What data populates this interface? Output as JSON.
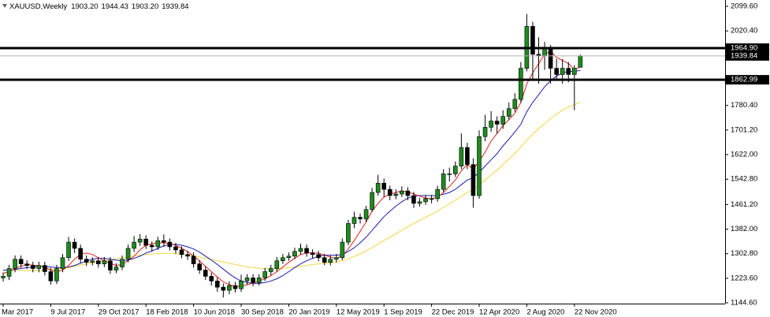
{
  "chart_data": {
    "type": "candlestick",
    "title": "XAUUSD,Weekly",
    "last_bar_labels": [
      "1903.20",
      "1944.43",
      "1903.20",
      "1939.84"
    ],
    "categories": [
      "Mar 2017",
      null,
      null,
      null,
      null,
      null,
      null,
      null,
      "9 Jul 2017",
      null,
      null,
      null,
      null,
      null,
      null,
      null,
      "29 Oct 2017",
      null,
      null,
      null,
      null,
      null,
      null,
      null,
      "18 Feb 2018",
      null,
      null,
      null,
      null,
      null,
      null,
      null,
      "10 Jun 2018",
      null,
      null,
      null,
      null,
      null,
      null,
      null,
      "30 Sep 2018",
      null,
      null,
      null,
      null,
      null,
      null,
      null,
      "20 Jan 2019",
      null,
      null,
      null,
      null,
      null,
      null,
      null,
      "12 May 2019",
      null,
      null,
      null,
      null,
      null,
      null,
      null,
      "1 Sep 2019",
      null,
      null,
      null,
      null,
      null,
      null,
      null,
      "22 Dec 2019",
      null,
      null,
      null,
      null,
      null,
      null,
      null,
      "12 Apr 2020",
      null,
      null,
      null,
      null,
      null,
      null,
      null,
      "2 Aug 2020",
      null,
      null,
      null,
      null,
      null,
      null,
      null,
      "22 Nov 2020",
      null
    ],
    "open": [
      1225,
      1230,
      1255,
      1285,
      1270,
      1265,
      1255,
      1265,
      1245,
      1215,
      1255,
      1290,
      1340,
      1320,
      1285,
      1275,
      1280,
      1270,
      1280,
      1250,
      1260,
      1285,
      1320,
      1340,
      1350,
      1330,
      1325,
      1345,
      1340,
      1325,
      1315,
      1300,
      1295,
      1270,
      1250,
      1230,
      1215,
      1195,
      1185,
      1200,
      1190,
      1215,
      1225,
      1210,
      1225,
      1245,
      1255,
      1280,
      1290,
      1295,
      1310,
      1320,
      1305,
      1300,
      1290,
      1275,
      1285,
      1290,
      1340,
      1400,
      1420,
      1415,
      1445,
      1500,
      1530,
      1510,
      1490,
      1495,
      1505,
      1490,
      1465,
      1470,
      1480,
      1480,
      1510,
      1560,
      1560,
      1585,
      1645,
      1590,
      1490,
      1680,
      1710,
      1730,
      1720,
      1745,
      1770,
      1800,
      1900,
      2035,
      1945,
      1940,
      1965,
      1900,
      1880,
      1900,
      1880,
      1903.2
    ],
    "high": [
      1242,
      1267,
      1297,
      1297,
      1282,
      1277,
      1277,
      1277,
      1257,
      1267,
      1302,
      1357,
      1352,
      1332,
      1297,
      1292,
      1292,
      1292,
      1292,
      1272,
      1297,
      1332,
      1360,
      1366,
      1362,
      1342,
      1357,
      1365,
      1352,
      1337,
      1327,
      1312,
      1307,
      1282,
      1262,
      1242,
      1227,
      1207,
      1214,
      1212,
      1235,
      1237,
      1237,
      1237,
      1257,
      1267,
      1292,
      1302,
      1307,
      1322,
      1335,
      1332,
      1317,
      1312,
      1302,
      1297,
      1302,
      1352,
      1412,
      1438,
      1432,
      1457,
      1515,
      1557,
      1545,
      1522,
      1510,
      1520,
      1517,
      1502,
      1482,
      1492,
      1492,
      1522,
      1575,
      1580,
      1600,
      1690,
      1660,
      1610,
      1700,
      1750,
      1762,
      1745,
      1765,
      1790,
      1820,
      1920,
      2075,
      2050,
      2000,
      1985,
      1975,
      1930,
      1930,
      1920,
      1910,
      1944.43
    ],
    "low": [
      1213,
      1218,
      1243,
      1258,
      1253,
      1243,
      1243,
      1233,
      1203,
      1205,
      1243,
      1280,
      1305,
      1273,
      1263,
      1265,
      1258,
      1260,
      1238,
      1240,
      1250,
      1275,
      1308,
      1328,
      1318,
      1310,
      1315,
      1325,
      1313,
      1303,
      1288,
      1283,
      1258,
      1238,
      1218,
      1200,
      1180,
      1162,
      1172,
      1178,
      1180,
      1203,
      1198,
      1200,
      1215,
      1233,
      1245,
      1270,
      1280,
      1285,
      1300,
      1293,
      1288,
      1278,
      1266,
      1265,
      1275,
      1282,
      1330,
      1385,
      1400,
      1405,
      1437,
      1490,
      1485,
      1475,
      1478,
      1485,
      1475,
      1450,
      1455,
      1460,
      1465,
      1470,
      1500,
      1535,
      1550,
      1575,
      1575,
      1451,
      1480,
      1665,
      1695,
      1690,
      1705,
      1735,
      1760,
      1790,
      1890,
      1860,
      1850,
      1895,
      1850,
      1860,
      1850,
      1855,
      1765,
      1903.2
    ],
    "close": [
      1230,
      1255,
      1285,
      1270,
      1265,
      1255,
      1265,
      1245,
      1215,
      1255,
      1290,
      1340,
      1320,
      1285,
      1275,
      1280,
      1270,
      1280,
      1250,
      1260,
      1285,
      1320,
      1340,
      1350,
      1330,
      1325,
      1345,
      1340,
      1325,
      1315,
      1300,
      1295,
      1270,
      1250,
      1230,
      1215,
      1195,
      1185,
      1200,
      1190,
      1215,
      1225,
      1210,
      1225,
      1245,
      1255,
      1280,
      1290,
      1295,
      1310,
      1320,
      1305,
      1300,
      1290,
      1275,
      1285,
      1290,
      1340,
      1400,
      1420,
      1415,
      1445,
      1500,
      1530,
      1510,
      1490,
      1495,
      1505,
      1490,
      1465,
      1470,
      1480,
      1480,
      1510,
      1560,
      1560,
      1585,
      1645,
      1590,
      1490,
      1680,
      1710,
      1730,
      1720,
      1745,
      1770,
      1800,
      1900,
      2035,
      1945,
      1940,
      1965,
      1900,
      1880,
      1900,
      1880,
      1900,
      1939.84
    ],
    "up_color": "#1f8a1f",
    "down_color": "#000000",
    "ma": [
      {
        "color": "#f2d640",
        "values": [
          1250,
          1250,
          1250,
          1249,
          1248,
          1248,
          1249,
          1250,
          1251,
          1253,
          1255,
          1258,
          1262,
          1266,
          1270,
          1274,
          1277,
          1280,
          1283,
          1286,
          1290,
          1293,
          1296,
          1298,
          1300,
          1302,
          1303,
          1304,
          1304,
          1303,
          1301,
          1299,
          1296,
          1292,
          1288,
          1284,
          1280,
          1276,
          1272,
          1268,
          1264,
          1261,
          1258,
          1256,
          1255,
          1254,
          1254,
          1256,
          1258,
          1260,
          1262,
          1265,
          1268,
          1270,
          1272,
          1274,
          1276,
          1280,
          1286,
          1294,
          1302,
          1312,
          1322,
          1334,
          1345,
          1356,
          1367,
          1378,
          1390,
          1400,
          1410,
          1420,
          1430,
          1440,
          1452,
          1463,
          1475,
          1488,
          1500,
          1510,
          1525,
          1540,
          1556,
          1572,
          1590,
          1608,
          1626,
          1646,
          1668,
          1688,
          1706,
          1722,
          1738,
          1752,
          1765,
          1775,
          1783,
          1790
        ]
      },
      {
        "color": "#1c1cb4",
        "values": [
          1250,
          1250,
          1252,
          1255,
          1258,
          1260,
          1262,
          1262,
          1260,
          1258,
          1258,
          1260,
          1265,
          1272,
          1280,
          1285,
          1288,
          1288,
          1285,
          1282,
          1280,
          1282,
          1288,
          1295,
          1305,
          1312,
          1320,
          1328,
          1332,
          1333,
          1330,
          1325,
          1318,
          1308,
          1295,
          1282,
          1268,
          1253,
          1238,
          1225,
          1215,
          1210,
          1207,
          1207,
          1210,
          1215,
          1222,
          1232,
          1245,
          1258,
          1270,
          1280,
          1288,
          1294,
          1298,
          1298,
          1298,
          1300,
          1310,
          1322,
          1338,
          1356,
          1378,
          1400,
          1422,
          1440,
          1456,
          1470,
          1482,
          1488,
          1490,
          1490,
          1490,
          1490,
          1494,
          1500,
          1510,
          1525,
          1540,
          1548,
          1565,
          1585,
          1605,
          1625,
          1650,
          1672,
          1695,
          1720,
          1760,
          1790,
          1815,
          1840,
          1860,
          1875,
          1885,
          1890,
          1890,
          1893
        ]
      },
      {
        "color": "#e0201c",
        "values": [
          1240,
          1245,
          1255,
          1262,
          1268,
          1266,
          1264,
          1260,
          1250,
          1245,
          1250,
          1265,
          1285,
          1300,
          1305,
          1300,
          1290,
          1280,
          1272,
          1265,
          1268,
          1280,
          1295,
          1315,
          1330,
          1335,
          1338,
          1338,
          1335,
          1330,
          1320,
          1310,
          1295,
          1280,
          1262,
          1245,
          1228,
          1212,
          1203,
          1198,
          1198,
          1203,
          1208,
          1215,
          1222,
          1232,
          1245,
          1260,
          1275,
          1288,
          1300,
          1305,
          1306,
          1304,
          1298,
          1292,
          1288,
          1296,
          1318,
          1345,
          1375,
          1405,
          1440,
          1465,
          1485,
          1495,
          1500,
          1505,
          1502,
          1495,
          1488,
          1482,
          1480,
          1485,
          1500,
          1520,
          1540,
          1570,
          1590,
          1575,
          1600,
          1630,
          1665,
          1690,
          1715,
          1735,
          1755,
          1790,
          1850,
          1885,
          1915,
          1945,
          1955,
          1935,
          1925,
          1915,
          1895,
          1905
        ]
      }
    ],
    "ylim": [
      1142.1,
      2119.9
    ],
    "yticks": [
      {
        "value": 2099.6,
        "label": "2099.60"
      },
      {
        "value": 2020.4,
        "label": "2020.40"
      },
      {
        "value": 1780.4,
        "label": "1780.40"
      },
      {
        "value": 1701.2,
        "label": "1701.20"
      },
      {
        "value": 1622,
        "label": "1622.00"
      },
      {
        "value": 1542.8,
        "label": "1542.80"
      },
      {
        "value": 1461.2,
        "label": "1461.20"
      },
      {
        "value": 1382,
        "label": "1382.00"
      },
      {
        "value": 1302.8,
        "label": "1302.80"
      },
      {
        "value": 1223.6,
        "label": "1223.60"
      },
      {
        "value": 1144.6,
        "label": "1144.60"
      }
    ],
    "levels": [
      {
        "value": 1964.9,
        "label": "1964.90"
      },
      {
        "value": 1862.99,
        "label": "1862.99"
      }
    ]
  }
}
